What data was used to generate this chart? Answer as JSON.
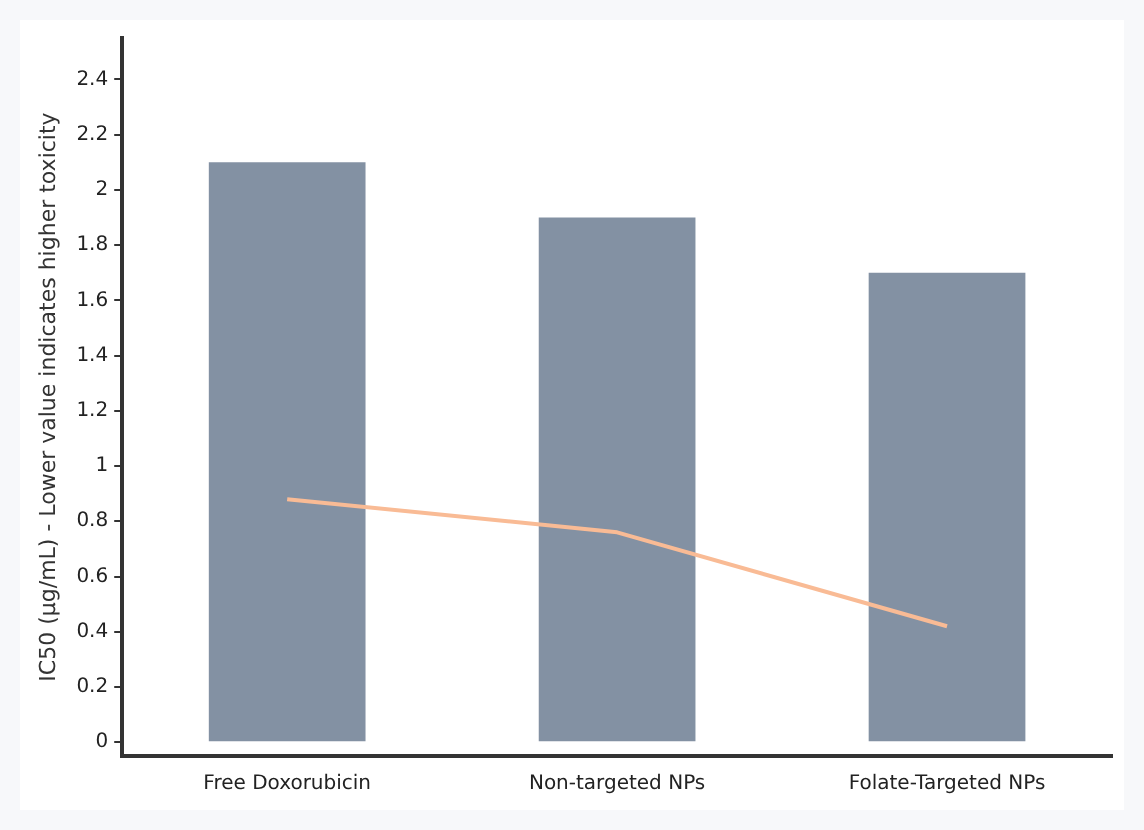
{
  "chart_data": {
    "type": "bar",
    "ylabel": "IC50 (µg/mL) - Lower value indicates higher toxicity",
    "categories": [
      "Free Doxorubicin",
      "Non-targeted NPs",
      "Folate-Targeted NPs"
    ],
    "series": [
      {
        "color": "#8391a3",
        "values": [
          2.1,
          1.9,
          1.7
        ]
      },
      {
        "type": "line",
        "color": "#f9bb95",
        "values": [
          0.88,
          0.76,
          0.42
        ]
      }
    ],
    "ylim": [
      -0.05,
      2.55
    ],
    "yticks": [
      0,
      0.2,
      0.4,
      0.6,
      0.8,
      1,
      1.2,
      1.4,
      1.6,
      1.8,
      2,
      2.2,
      2.4
    ],
    "grid": false,
    "legend": false,
    "marker": "none"
  }
}
